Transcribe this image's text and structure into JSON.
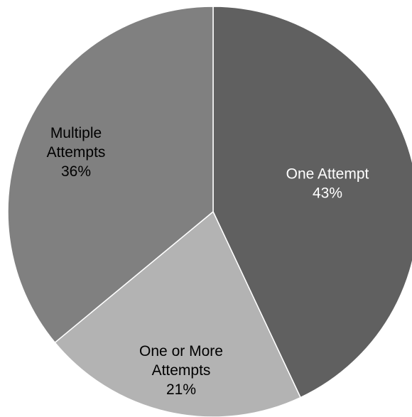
{
  "chart_data": {
    "type": "pie",
    "title": "",
    "slices": [
      {
        "label_lines": [
          "One Attempt"
        ],
        "value_label": "43%",
        "value": 43,
        "color": "#606060",
        "label_color": "#ffffff"
      },
      {
        "label_lines": [
          "One or More",
          "Attempts"
        ],
        "value_label": "21%",
        "value": 21,
        "color": "#b3b3b3",
        "label_color": "#000000"
      },
      {
        "label_lines": [
          "Multiple",
          "Attempts"
        ],
        "value_label": "36%",
        "value": 36,
        "color": "#808080",
        "label_color": "#000000"
      }
    ],
    "start_angle": "12 o'clock",
    "direction": "clockwise",
    "legend": "none",
    "data_labels": "inside"
  }
}
